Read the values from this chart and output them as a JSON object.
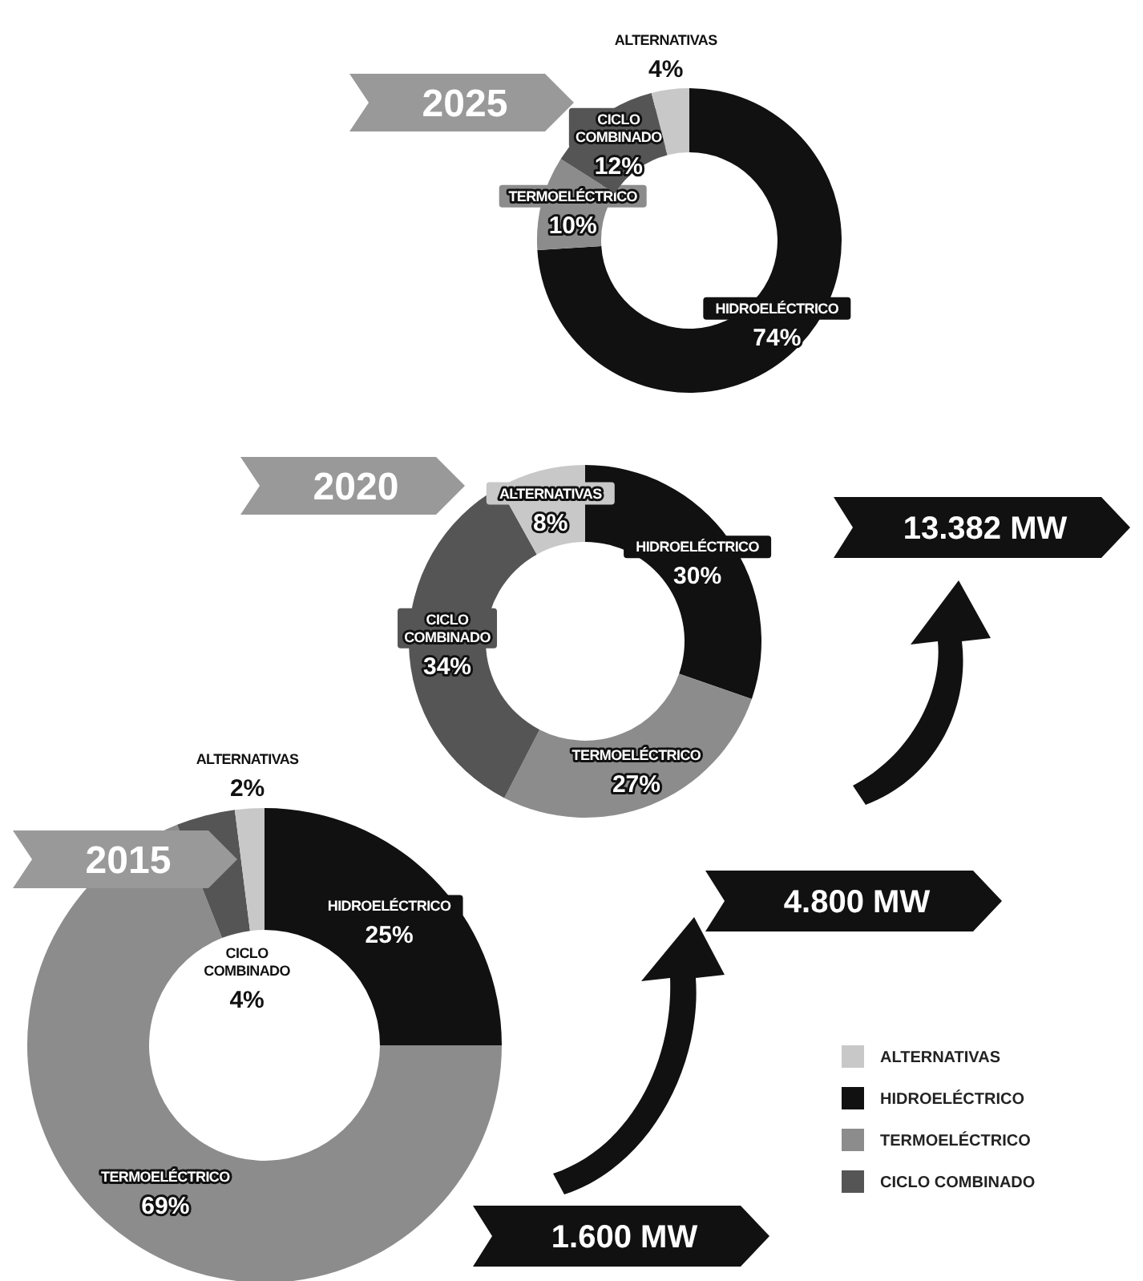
{
  "chart_data": [
    {
      "type": "donut",
      "title": "2025",
      "categories": [
        "HIDROELÉCTRICO",
        "TERMOELÉCTRICO",
        "CICLO COMBINADO",
        "ALTERNATIVAS"
      ],
      "values": [
        74,
        10,
        12,
        4
      ],
      "value_labels": [
        "74%",
        "10%",
        "12%",
        "4%"
      ],
      "colors": [
        "#111111",
        "#8c8c8c",
        "#555555",
        "#c8c8c8"
      ],
      "annotations": [
        "13.382 MW"
      ],
      "legend": false
    },
    {
      "type": "donut",
      "title": "2020",
      "categories": [
        "HIDROELÉCTRICO",
        "TERMOELÉCTRICO",
        "CICLO COMBINADO",
        "ALTERNATIVAS"
      ],
      "values": [
        30,
        27,
        34,
        8
      ],
      "value_labels": [
        "30%",
        "27%",
        "34%",
        "8%"
      ],
      "colors": [
        "#111111",
        "#8c8c8c",
        "#555555",
        "#c8c8c8"
      ],
      "annotations": [
        "4.800 MW"
      ],
      "legend": false
    },
    {
      "type": "donut",
      "title": "2015",
      "categories": [
        "HIDROELÉCTRICO",
        "TERMOELÉCTRICO",
        "CICLO COMBINADO",
        "ALTERNATIVAS"
      ],
      "values": [
        25,
        69,
        4,
        2
      ],
      "value_labels": [
        "25%",
        "69%",
        "4%",
        "2%"
      ],
      "colors": [
        "#111111",
        "#8c8c8c",
        "#555555",
        "#c8c8c8"
      ],
      "annotations": [
        "1.600 MW"
      ],
      "legend": "bottom right"
    }
  ]
}
